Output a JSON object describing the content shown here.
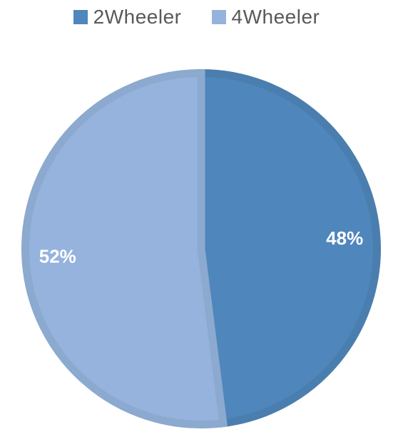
{
  "chart_data": {
    "type": "pie",
    "categories": [
      "2Wheeler",
      "4Wheeler"
    ],
    "values": [
      48,
      52
    ],
    "data_labels": [
      "48%",
      "52%"
    ],
    "colors": [
      "#4f86bb",
      "#95b3dc"
    ],
    "border_colors": [
      "#4a7eae",
      "#8ca9cf"
    ],
    "start_angle_deg": 0,
    "direction": "clockwise",
    "legend_position": "top",
    "title": ""
  }
}
